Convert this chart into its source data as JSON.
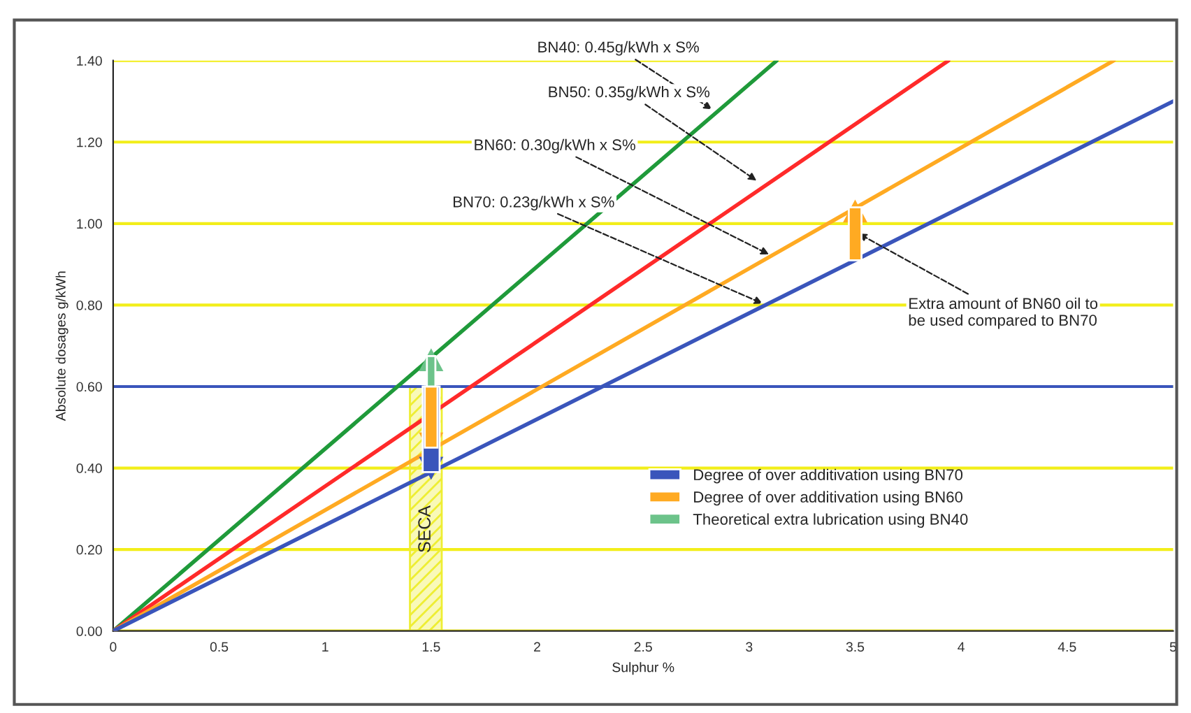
{
  "chart_data": {
    "type": "line",
    "xlabel": "Sulphur %",
    "ylabel": "Absolute dosages g/kWh",
    "xlim": [
      0,
      5
    ],
    "xticks": [
      0,
      0.5,
      1,
      1.5,
      2,
      2.5,
      3,
      3.5,
      4,
      4.5,
      5
    ],
    "ylim": [
      0,
      1.4
    ],
    "yticks": [
      {
        "value": 0,
        "label": "0.00"
      },
      {
        "value": 0.2,
        "label": "0.20"
      },
      {
        "value": 0.4,
        "label": "0.40"
      },
      {
        "value": 0.6,
        "label": "0.60"
      },
      {
        "value": 0.8,
        "label": "0.80"
      },
      {
        "value": 1.0,
        "label": "1.00"
      },
      {
        "value": 1.2,
        "label": "1.20"
      },
      {
        "value": 1.4,
        "label": "1.40"
      }
    ],
    "grid": "y",
    "series": [
      {
        "color": "#1f9a3a",
        "x": [
          0,
          3.13
        ],
        "values": [
          0,
          1.4
        ]
      },
      {
        "color": "#ff2a2a",
        "x": [
          0,
          3.94
        ],
        "values": [
          0,
          1.4
        ]
      },
      {
        "color": "#ffaa22",
        "x": [
          0,
          4.72
        ],
        "values": [
          0,
          1.4
        ]
      },
      {
        "color": "#3a55bb",
        "x": [
          0,
          5
        ],
        "values": [
          0,
          1.3
        ]
      },
      {
        "type": "bar",
        "name": "Degree of over additivation using BN70",
        "color": "#3a55bb",
        "x": [
          1.5
        ],
        "base": [
          0.6
        ],
        "values": [
          -0.21
        ]
      },
      {
        "type": "bar",
        "name": "Degree of over additivation using BN60",
        "color": "#ffaa22",
        "x": [
          1.5,
          3.5
        ],
        "base": [
          0.6,
          0.91
        ],
        "values": [
          -0.15,
          0.13
        ]
      },
      {
        "type": "bar",
        "name": "Theoretical extra lubrication using BN40",
        "color": "#6cc38a",
        "x": [
          1.5
        ],
        "base": [
          0.6
        ],
        "values": [
          0.075
        ]
      }
    ],
    "ref_lines": [
      {
        "axis": "y",
        "value": 0.6,
        "color": "#3a55bb"
      }
    ],
    "bands": [
      {
        "axis": "x",
        "from": 1.4,
        "to": 1.55,
        "label": "SECA",
        "color": "#eeee33"
      }
    ],
    "annotations": [
      {
        "text": "BN40: 0.45g/kWh x S%",
        "x": 2.84,
        "y": 1.275
      },
      {
        "text": "BN50: 0.35g/kWh x S%",
        "x": 3.05,
        "y": 1.1
      },
      {
        "text": "BN60: 0.30g/kWh x S%",
        "x": 3.11,
        "y": 0.92
      },
      {
        "text": "BN70: 0.23g/kWh x S%",
        "x": 3.08,
        "y": 0.8
      },
      {
        "text": "Extra amount of BN60 oil to\nbe used compared to BN70",
        "x": 3.5,
        "y": 0.98
      }
    ],
    "legend": "bottom right"
  }
}
